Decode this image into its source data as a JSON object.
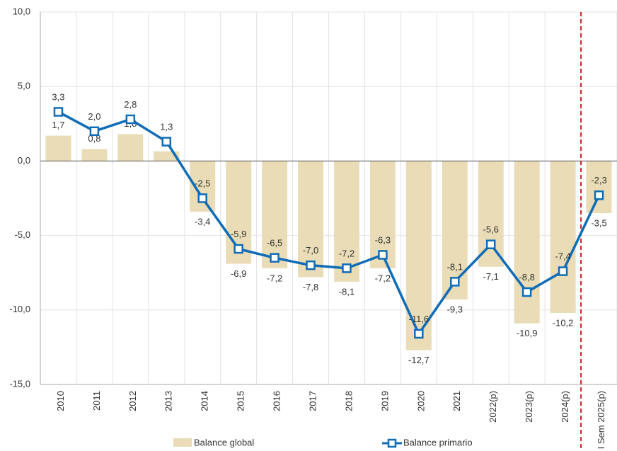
{
  "chart_data": {
    "type": "bar-line",
    "categories": [
      "2010",
      "2011",
      "2012",
      "2013",
      "2014",
      "2015",
      "2016",
      "2017",
      "2018",
      "2019",
      "2020",
      "2021",
      "2022(p)",
      "2023(p)",
      "2024(p)",
      "I Sem 2025(p)"
    ],
    "series": [
      {
        "name": "Balance global",
        "type": "bar",
        "color": "#e9dcb6",
        "values": [
          1.7,
          0.8,
          1.8,
          0.65,
          -3.4,
          -6.9,
          -7.2,
          -7.8,
          -8.1,
          -7.2,
          -12.7,
          -9.3,
          -7.1,
          -10.9,
          -10.2,
          -3.5
        ],
        "value_labels": [
          "1,7",
          "0,8",
          "1,8",
          null,
          "-3,4",
          "-6,9",
          "-7,2",
          "-7,8",
          "-8,1",
          "-7,2",
          "-12,7",
          "-9,3",
          "-7,1",
          "-10,9",
          "-10,2",
          "-3,5"
        ]
      },
      {
        "name": "Balance primario",
        "type": "line",
        "color": "#0f6cb6",
        "values": [
          3.3,
          2.0,
          2.8,
          1.3,
          -2.5,
          -5.9,
          -6.5,
          -7.0,
          -7.2,
          -6.3,
          -11.6,
          -8.1,
          -5.6,
          -8.8,
          -7.4,
          -2.3
        ],
        "value_labels": [
          "3,3",
          "2,0",
          "2,8",
          "1,3",
          "-2,5",
          "-5,9",
          "-6,5",
          "-7,0",
          "-7,2",
          "-6,3",
          "-11,6",
          "-8,1",
          "-5,6",
          "-8,8",
          "-7,4",
          "-2,3"
        ]
      }
    ],
    "ylim": [
      -15,
      10
    ],
    "yticks": [
      {
        "value": -15,
        "label": "-15,0"
      },
      {
        "value": -10,
        "label": "-10,0"
      },
      {
        "value": -5,
        "label": "-5,0"
      },
      {
        "value": 0,
        "label": "0,0"
      },
      {
        "value": 5,
        "label": "5,0"
      },
      {
        "value": 10,
        "label": "10,0"
      }
    ],
    "grid": true,
    "legend": "bottom"
  }
}
